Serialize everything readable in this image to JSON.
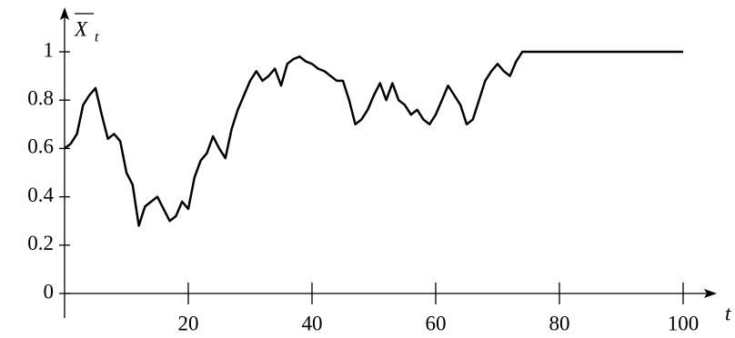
{
  "chart_data": {
    "type": "line",
    "ylabel": "X",
    "ylabel_sub": "t",
    "xlabel": "t",
    "x": [
      0,
      1,
      2,
      3,
      4,
      5,
      6,
      7,
      8,
      9,
      10,
      11,
      12,
      13,
      14,
      15,
      16,
      17,
      18,
      19,
      20,
      21,
      22,
      23,
      24,
      25,
      26,
      27,
      28,
      29,
      30,
      31,
      32,
      33,
      34,
      35,
      36,
      37,
      38,
      39,
      40,
      41,
      42,
      43,
      44,
      45,
      46,
      47,
      48,
      49,
      50,
      51,
      52,
      53,
      54,
      55,
      56,
      57,
      58,
      59,
      60,
      61,
      62,
      63,
      64,
      65,
      66,
      67,
      68,
      69,
      70,
      71,
      72,
      73,
      74,
      100
    ],
    "series": [
      {
        "color": "#000000",
        "values": [
          0.6,
          0.62,
          0.66,
          0.78,
          0.82,
          0.85,
          0.74,
          0.64,
          0.66,
          0.63,
          0.5,
          0.45,
          0.28,
          0.36,
          0.38,
          0.4,
          0.35,
          0.3,
          0.32,
          0.38,
          0.35,
          0.48,
          0.55,
          0.58,
          0.65,
          0.6,
          0.56,
          0.68,
          0.76,
          0.82,
          0.88,
          0.92,
          0.88,
          0.9,
          0.93,
          0.86,
          0.95,
          0.97,
          0.98,
          0.96,
          0.95,
          0.93,
          0.92,
          0.9,
          0.88,
          0.88,
          0.8,
          0.7,
          0.72,
          0.76,
          0.82,
          0.87,
          0.8,
          0.87,
          0.8,
          0.78,
          0.74,
          0.76,
          0.72,
          0.7,
          0.74,
          0.8,
          0.86,
          0.82,
          0.78,
          0.7,
          0.72,
          0.8,
          0.88,
          0.92,
          0.95,
          0.92,
          0.9,
          0.96,
          1,
          1
        ]
      }
    ],
    "xlim": [
      0,
      100
    ],
    "ylim": [
      0,
      1
    ],
    "xticks": [
      20,
      40,
      60,
      80,
      100
    ],
    "yticks": [
      0,
      0.2,
      0.4,
      0.6,
      0.8,
      1
    ]
  }
}
